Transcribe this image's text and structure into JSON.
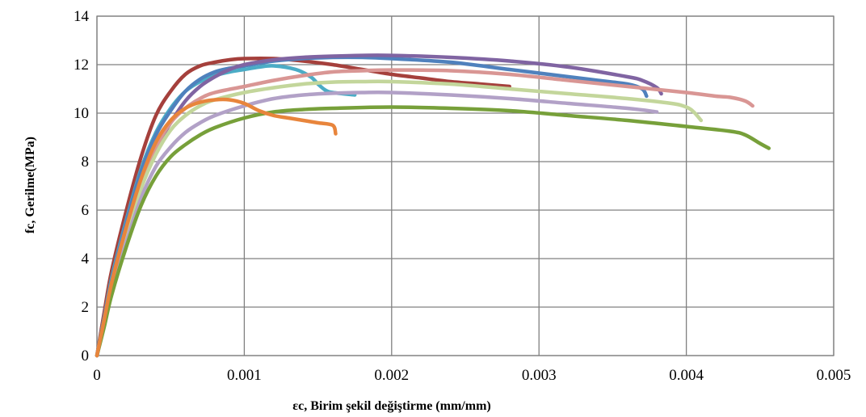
{
  "chart_data": {
    "type": "line",
    "title": "",
    "xlabel": "εc, Birim şekil değiştirme (mm/mm)",
    "ylabel": "fc, Gerilme(MPa)",
    "xlim": [
      0,
      0.005
    ],
    "ylim": [
      0,
      14
    ],
    "x_ticks": [
      "0",
      "0.001",
      "0.002",
      "0.003",
      "0.004",
      "0.005"
    ],
    "y_ticks": [
      "0",
      "2",
      "4",
      "6",
      "8",
      "10",
      "12",
      "14"
    ],
    "grid": true,
    "legend": "none",
    "series": [
      {
        "color": "#A5403C",
        "points": [
          [
            0,
            0
          ],
          [
            5e-05,
            1.8
          ],
          [
            0.0001,
            3.5
          ],
          [
            0.0002,
            6.0
          ],
          [
            0.0003,
            8.2
          ],
          [
            0.0004,
            9.9
          ],
          [
            0.0005,
            10.9
          ],
          [
            0.0006,
            11.6
          ],
          [
            0.0007,
            11.95
          ],
          [
            0.0008,
            12.1
          ],
          [
            0.0009,
            12.2
          ],
          [
            0.001,
            12.25
          ],
          [
            0.0012,
            12.25
          ],
          [
            0.0014,
            12.15
          ],
          [
            0.0016,
            12.0
          ],
          [
            0.0018,
            11.8
          ],
          [
            0.002,
            11.6
          ],
          [
            0.0022,
            11.45
          ],
          [
            0.0024,
            11.3
          ],
          [
            0.0026,
            11.2
          ],
          [
            0.0028,
            11.1
          ]
        ]
      },
      {
        "color": "#4BACC6",
        "points": [
          [
            0,
            0
          ],
          [
            5e-05,
            1.6
          ],
          [
            0.0001,
            3.2
          ],
          [
            0.0002,
            5.6
          ],
          [
            0.0003,
            7.7
          ],
          [
            0.0004,
            9.2
          ],
          [
            0.0005,
            10.2
          ],
          [
            0.0006,
            10.9
          ],
          [
            0.0007,
            11.3
          ],
          [
            0.0008,
            11.55
          ],
          [
            0.0009,
            11.7
          ],
          [
            0.001,
            11.8
          ],
          [
            0.0011,
            11.9
          ],
          [
            0.0012,
            11.95
          ],
          [
            0.00135,
            11.8
          ],
          [
            0.00145,
            11.5
          ],
          [
            0.0015,
            11.2
          ],
          [
            0.00155,
            10.95
          ],
          [
            0.0016,
            10.85
          ],
          [
            0.00175,
            10.75
          ]
        ]
      },
      {
        "color": "#4F81BD",
        "points": [
          [
            0,
            0
          ],
          [
            5e-05,
            1.6
          ],
          [
            0.0001,
            3.1
          ],
          [
            0.0002,
            5.5
          ],
          [
            0.0003,
            7.6
          ],
          [
            0.0004,
            9.1
          ],
          [
            0.0005,
            10.1
          ],
          [
            0.0006,
            10.9
          ],
          [
            0.0007,
            11.4
          ],
          [
            0.0008,
            11.7
          ],
          [
            0.0009,
            11.85
          ],
          [
            0.001,
            11.95
          ],
          [
            0.0012,
            12.15
          ],
          [
            0.0014,
            12.25
          ],
          [
            0.0016,
            12.3
          ],
          [
            0.0018,
            12.3
          ],
          [
            0.002,
            12.25
          ],
          [
            0.0024,
            12.1
          ],
          [
            0.0028,
            11.8
          ],
          [
            0.0032,
            11.5
          ],
          [
            0.0034,
            11.35
          ],
          [
            0.0036,
            11.2
          ],
          [
            0.0037,
            11.0
          ],
          [
            0.00373,
            10.7
          ]
        ]
      },
      {
        "color": "#8064A2",
        "points": [
          [
            0,
            0
          ],
          [
            5e-05,
            1.4
          ],
          [
            0.0001,
            2.8
          ],
          [
            0.0002,
            5.0
          ],
          [
            0.0003,
            6.9
          ],
          [
            0.0004,
            8.5
          ],
          [
            0.0005,
            9.6
          ],
          [
            0.0006,
            10.5
          ],
          [
            0.0007,
            11.1
          ],
          [
            0.0008,
            11.5
          ],
          [
            0.0009,
            11.8
          ],
          [
            0.001,
            12.0
          ],
          [
            0.0012,
            12.2
          ],
          [
            0.0014,
            12.3
          ],
          [
            0.0016,
            12.35
          ],
          [
            0.0018,
            12.38
          ],
          [
            0.002,
            12.38
          ],
          [
            0.0024,
            12.3
          ],
          [
            0.0028,
            12.15
          ],
          [
            0.0032,
            11.9
          ],
          [
            0.0036,
            11.5
          ],
          [
            0.0037,
            11.35
          ],
          [
            0.0038,
            11.05
          ],
          [
            0.00383,
            10.8
          ]
        ]
      },
      {
        "color": "#D99694",
        "points": [
          [
            0,
            0
          ],
          [
            5e-05,
            1.5
          ],
          [
            0.0001,
            3.0
          ],
          [
            0.0002,
            5.3
          ],
          [
            0.0003,
            7.2
          ],
          [
            0.0004,
            8.6
          ],
          [
            0.0005,
            9.6
          ],
          [
            0.0006,
            10.2
          ],
          [
            0.0007,
            10.6
          ],
          [
            0.0008,
            10.85
          ],
          [
            0.001,
            11.1
          ],
          [
            0.0012,
            11.35
          ],
          [
            0.0014,
            11.55
          ],
          [
            0.0016,
            11.7
          ],
          [
            0.0018,
            11.75
          ],
          [
            0.002,
            11.78
          ],
          [
            0.0024,
            11.75
          ],
          [
            0.0028,
            11.6
          ],
          [
            0.0032,
            11.35
          ],
          [
            0.0036,
            11.1
          ],
          [
            0.004,
            10.85
          ],
          [
            0.0042,
            10.7
          ],
          [
            0.0043,
            10.65
          ],
          [
            0.0044,
            10.5
          ],
          [
            0.00445,
            10.3
          ]
        ]
      },
      {
        "color": "#C3D69B",
        "points": [
          [
            0,
            0
          ],
          [
            5e-05,
            1.4
          ],
          [
            0.0001,
            2.8
          ],
          [
            0.0002,
            5.0
          ],
          [
            0.0003,
            6.9
          ],
          [
            0.0004,
            8.3
          ],
          [
            0.0005,
            9.3
          ],
          [
            0.0006,
            9.9
          ],
          [
            0.0007,
            10.3
          ],
          [
            0.0008,
            10.55
          ],
          [
            0.001,
            10.85
          ],
          [
            0.0012,
            11.05
          ],
          [
            0.0014,
            11.2
          ],
          [
            0.0016,
            11.28
          ],
          [
            0.0018,
            11.3
          ],
          [
            0.002,
            11.3
          ],
          [
            0.0024,
            11.2
          ],
          [
            0.0028,
            11.0
          ],
          [
            0.0032,
            10.8
          ],
          [
            0.0036,
            10.6
          ],
          [
            0.0039,
            10.4
          ],
          [
            0.004,
            10.25
          ],
          [
            0.00405,
            10.05
          ],
          [
            0.0041,
            9.7
          ]
        ]
      },
      {
        "color": "#B2A1C7",
        "points": [
          [
            0,
            0
          ],
          [
            5e-05,
            1.3
          ],
          [
            0.0001,
            2.6
          ],
          [
            0.0002,
            4.7
          ],
          [
            0.0003,
            6.5
          ],
          [
            0.0004,
            7.8
          ],
          [
            0.0005,
            8.6
          ],
          [
            0.0006,
            9.2
          ],
          [
            0.0007,
            9.6
          ],
          [
            0.0008,
            9.9
          ],
          [
            0.001,
            10.3
          ],
          [
            0.0012,
            10.6
          ],
          [
            0.0014,
            10.75
          ],
          [
            0.0016,
            10.82
          ],
          [
            0.0018,
            10.85
          ],
          [
            0.002,
            10.85
          ],
          [
            0.0024,
            10.75
          ],
          [
            0.0028,
            10.6
          ],
          [
            0.0032,
            10.4
          ],
          [
            0.0036,
            10.2
          ],
          [
            0.0038,
            10.05
          ]
        ]
      },
      {
        "color": "#77A03A",
        "points": [
          [
            0,
            0
          ],
          [
            5e-05,
            1.2
          ],
          [
            0.0001,
            2.5
          ],
          [
            0.0002,
            4.5
          ],
          [
            0.0003,
            6.2
          ],
          [
            0.0004,
            7.4
          ],
          [
            0.0005,
            8.2
          ],
          [
            0.0006,
            8.7
          ],
          [
            0.0007,
            9.1
          ],
          [
            0.0008,
            9.4
          ],
          [
            0.001,
            9.8
          ],
          [
            0.0012,
            10.05
          ],
          [
            0.0014,
            10.15
          ],
          [
            0.0016,
            10.2
          ],
          [
            0.002,
            10.25
          ],
          [
            0.0024,
            10.2
          ],
          [
            0.0028,
            10.1
          ],
          [
            0.0032,
            9.9
          ],
          [
            0.0036,
            9.7
          ],
          [
            0.004,
            9.45
          ],
          [
            0.0043,
            9.25
          ],
          [
            0.0044,
            9.1
          ],
          [
            0.0045,
            8.75
          ],
          [
            0.00456,
            8.55
          ]
        ]
      },
      {
        "color": "#E8853C",
        "points": [
          [
            0,
            0
          ],
          [
            5e-05,
            1.5
          ],
          [
            0.0001,
            3.0
          ],
          [
            0.0002,
            5.3
          ],
          [
            0.0003,
            7.3
          ],
          [
            0.0004,
            8.8
          ],
          [
            0.0005,
            9.7
          ],
          [
            0.0006,
            10.2
          ],
          [
            0.0007,
            10.45
          ],
          [
            0.0008,
            10.55
          ],
          [
            0.0009,
            10.55
          ],
          [
            0.001,
            10.4
          ],
          [
            0.0011,
            10.1
          ],
          [
            0.0012,
            9.9
          ],
          [
            0.0013,
            9.8
          ],
          [
            0.0014,
            9.7
          ],
          [
            0.0015,
            9.6
          ],
          [
            0.0016,
            9.5
          ],
          [
            0.00162,
            9.15
          ]
        ]
      }
    ]
  }
}
